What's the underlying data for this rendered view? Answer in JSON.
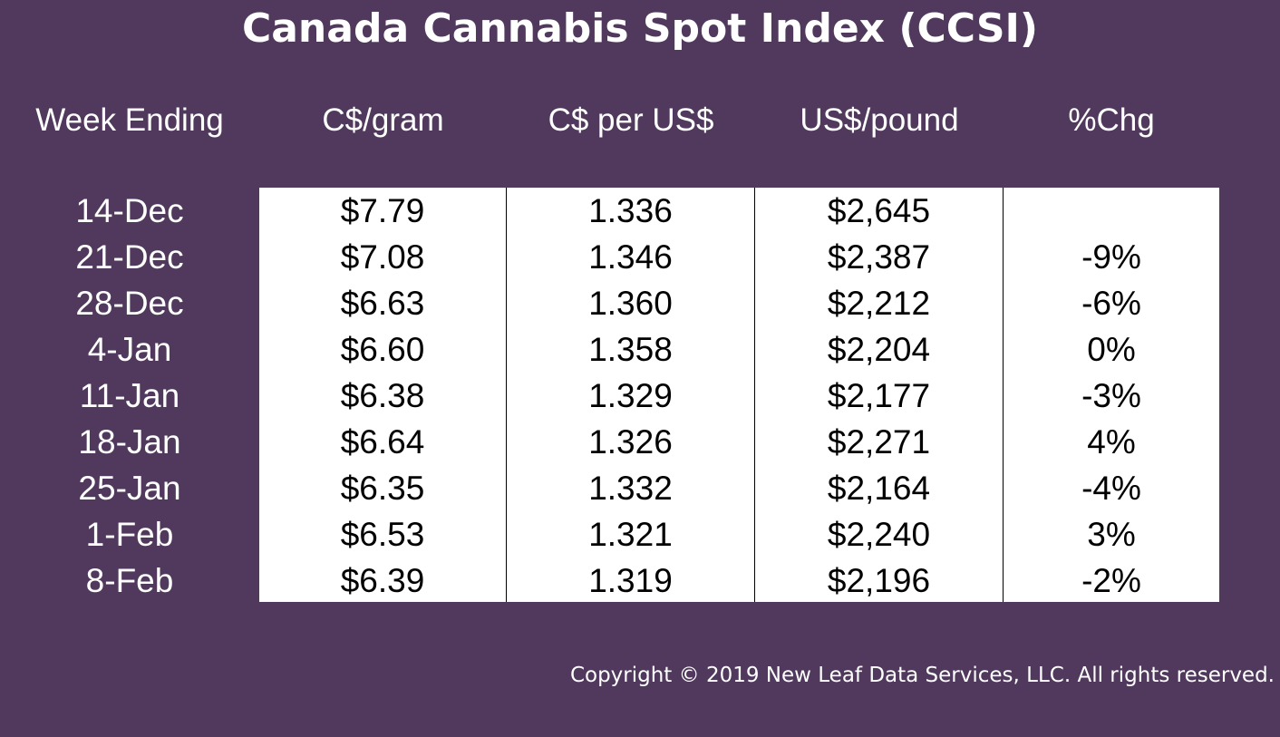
{
  "title": "Canada Cannabis Spot Index (CCSI)",
  "copyright": "Copyright © 2019 New Leaf Data Services, LLC. All rights reserved.",
  "colors": {
    "background": "#51395d",
    "table_background": "#ffffff",
    "header_text": "#ffffff",
    "cell_text": "#000000"
  },
  "chart_data": {
    "type": "table",
    "title": "Canada Cannabis Spot Index (CCSI)",
    "columns": [
      "Week Ending",
      "C$/gram",
      "C$ per US$",
      "US$/pound",
      "%Chg"
    ],
    "rows": [
      {
        "week": "14-Dec",
        "cad_per_gram": "$7.79",
        "cad_per_usd": "1.336",
        "usd_per_pound": "$2,645",
        "pct_chg": ""
      },
      {
        "week": "21-Dec",
        "cad_per_gram": "$7.08",
        "cad_per_usd": "1.346",
        "usd_per_pound": "$2,387",
        "pct_chg": "-9%"
      },
      {
        "week": "28-Dec",
        "cad_per_gram": "$6.63",
        "cad_per_usd": "1.360",
        "usd_per_pound": "$2,212",
        "pct_chg": "-6%"
      },
      {
        "week": "4-Jan",
        "cad_per_gram": "$6.60",
        "cad_per_usd": "1.358",
        "usd_per_pound": "$2,204",
        "pct_chg": "0%"
      },
      {
        "week": "11-Jan",
        "cad_per_gram": "$6.38",
        "cad_per_usd": "1.329",
        "usd_per_pound": "$2,177",
        "pct_chg": "-3%"
      },
      {
        "week": "18-Jan",
        "cad_per_gram": "$6.64",
        "cad_per_usd": "1.326",
        "usd_per_pound": "$2,271",
        "pct_chg": "4%"
      },
      {
        "week": "25-Jan",
        "cad_per_gram": "$6.35",
        "cad_per_usd": "1.332",
        "usd_per_pound": "$2,164",
        "pct_chg": "-4%"
      },
      {
        "week": "1-Feb",
        "cad_per_gram": "$6.53",
        "cad_per_usd": "1.321",
        "usd_per_pound": "$2,240",
        "pct_chg": "3%"
      },
      {
        "week": "8-Feb",
        "cad_per_gram": "$6.39",
        "cad_per_usd": "1.319",
        "usd_per_pound": "$2,196",
        "pct_chg": "-2%"
      }
    ]
  }
}
